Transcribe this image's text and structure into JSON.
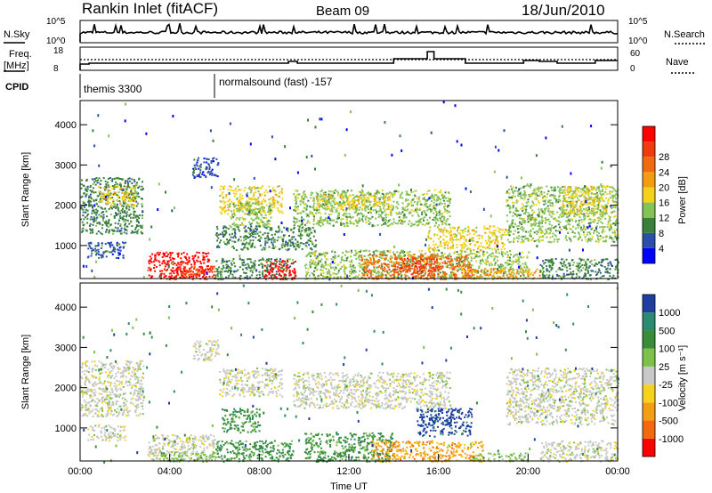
{
  "header": {
    "station": "Rankin Inlet (fitACF)",
    "beam": "Beam 09",
    "date": "18/Jun/2010"
  },
  "noise_panel": {
    "left_label": "N.Sky",
    "right_label": "N.Search",
    "ticks_left": [
      "10^5",
      "10^0"
    ],
    "ticks_right": [
      "10^5",
      "10^0"
    ]
  },
  "freq_panel": {
    "left_label": "Freq.",
    "left_unit": "[MHz]",
    "right_label": "Nave",
    "ticks_left": [
      "18",
      "8"
    ],
    "ticks_right": [
      "60",
      "0"
    ]
  },
  "cpid": {
    "label": "CPID",
    "segments": [
      {
        "name": "themis 3300",
        "start_hour": 0
      },
      {
        "name": "normalsound (fast) -157",
        "start_hour": 6
      }
    ]
  },
  "chart_data": [
    {
      "type": "heatmap",
      "name": "power",
      "ylabel": "Slant Range [km]",
      "xlabel": "",
      "x_ticks": [
        "00:00",
        "04:00",
        "08:00",
        "12:00",
        "16:00",
        "20:00",
        "00:00"
      ],
      "y_ticks": [
        1000,
        2000,
        3000,
        4000
      ],
      "xlim": [
        0,
        24
      ],
      "ylim": [
        180,
        4600
      ],
      "colorbar": {
        "label": "Power [dB]",
        "ticks": [
          "4",
          "8",
          "12",
          "16",
          "20",
          "24",
          "28"
        ],
        "colors": [
          "#0000ff",
          "#2b4fa8",
          "#3a7f3a",
          "#86c25a",
          "#f2d21b",
          "#f39c12",
          "#f26a10",
          "#f23a10",
          "#ff0000"
        ]
      },
      "regions": [
        {
          "t0": 0.0,
          "t1": 2.8,
          "r0": 1300,
          "r1": 2700,
          "level": 2
        },
        {
          "t0": 0.8,
          "t1": 2.5,
          "r0": 2000,
          "r1": 2500,
          "level": 4
        },
        {
          "t0": 0.3,
          "t1": 2.0,
          "r0": 700,
          "r1": 1100,
          "level": 1
        },
        {
          "t0": 3.0,
          "t1": 5.8,
          "r0": 180,
          "r1": 850,
          "level": 8
        },
        {
          "t0": 3.8,
          "t1": 6.0,
          "r0": 180,
          "r1": 500,
          "level": 7
        },
        {
          "t0": 5.0,
          "t1": 6.2,
          "r0": 2700,
          "r1": 3200,
          "level": 1
        },
        {
          "t0": 6.2,
          "t1": 9.0,
          "r0": 1800,
          "r1": 2500,
          "level": 4
        },
        {
          "t0": 6.6,
          "t1": 8.5,
          "r0": 1500,
          "r1": 2100,
          "level": 3
        },
        {
          "t0": 6.0,
          "t1": 10.5,
          "r0": 900,
          "r1": 1500,
          "level": 2
        },
        {
          "t0": 6.0,
          "t1": 9.5,
          "r0": 180,
          "r1": 700,
          "level": 2
        },
        {
          "t0": 8.2,
          "t1": 9.6,
          "r0": 180,
          "r1": 650,
          "level": 8
        },
        {
          "t0": 9.5,
          "t1": 16.5,
          "r0": 1500,
          "r1": 2400,
          "level": 3
        },
        {
          "t0": 10.5,
          "t1": 14.0,
          "r0": 1900,
          "r1": 2300,
          "level": 4
        },
        {
          "t0": 10.0,
          "t1": 20.0,
          "r0": 180,
          "r1": 900,
          "level": 3
        },
        {
          "t0": 12.5,
          "t1": 17.5,
          "r0": 180,
          "r1": 800,
          "level": 6
        },
        {
          "t0": 14.0,
          "t1": 16.0,
          "r0": 300,
          "r1": 700,
          "level": 7
        },
        {
          "t0": 15.5,
          "t1": 19.0,
          "r0": 900,
          "r1": 1500,
          "level": 4
        },
        {
          "t0": 17.0,
          "t1": 20.5,
          "r0": 180,
          "r1": 450,
          "level": 5
        },
        {
          "t0": 19.0,
          "t1": 24.0,
          "r0": 1100,
          "r1": 2500,
          "level": 3
        },
        {
          "t0": 21.5,
          "t1": 23.5,
          "r0": 1800,
          "r1": 2500,
          "level": 4
        },
        {
          "t0": 20.5,
          "t1": 24.0,
          "r0": 180,
          "r1": 700,
          "level": 2
        }
      ]
    },
    {
      "type": "heatmap",
      "name": "velocity",
      "ylabel": "Slant Range [km]",
      "xlabel": "Time UT",
      "x_ticks": [
        "00:00",
        "04:00",
        "08:00",
        "12:00",
        "16:00",
        "20:00",
        "00:00"
      ],
      "y_ticks": [
        1000,
        2000,
        3000,
        4000
      ],
      "xlim": [
        0,
        24
      ],
      "ylim": [
        180,
        4600
      ],
      "colorbar": {
        "label": "Velocity [m s⁻¹]",
        "ticks": [
          "1000",
          "500",
          "100",
          "25",
          "-25",
          "-100",
          "-500",
          "-1000"
        ],
        "colors": [
          "#1f3fa0",
          "#2d8a70",
          "#3a8c3a",
          "#7dc04a",
          "#c8c8c8",
          "#f5d21c",
          "#f2a012",
          "#f26a10",
          "#ff0000"
        ]
      },
      "regions": [
        {
          "t0": 0.0,
          "t1": 2.8,
          "r0": 1300,
          "r1": 2700,
          "level": 4
        },
        {
          "t0": 0.3,
          "t1": 2.0,
          "r0": 700,
          "r1": 1100,
          "level": 4
        },
        {
          "t0": 3.0,
          "t1": 6.0,
          "r0": 180,
          "r1": 850,
          "level": 4
        },
        {
          "t0": 3.5,
          "t1": 6.0,
          "r0": 180,
          "r1": 400,
          "level": 3
        },
        {
          "t0": 5.0,
          "t1": 6.2,
          "r0": 2700,
          "r1": 3200,
          "level": 4
        },
        {
          "t0": 6.2,
          "t1": 9.0,
          "r0": 1800,
          "r1": 2500,
          "level": 4
        },
        {
          "t0": 6.3,
          "t1": 8.0,
          "r0": 900,
          "r1": 1500,
          "level": 2
        },
        {
          "t0": 6.0,
          "t1": 9.5,
          "r0": 180,
          "r1": 700,
          "level": 2
        },
        {
          "t0": 9.5,
          "t1": 16.5,
          "r0": 1500,
          "r1": 2400,
          "level": 4
        },
        {
          "t0": 10.0,
          "t1": 14.0,
          "r0": 180,
          "r1": 900,
          "level": 2
        },
        {
          "t0": 13.0,
          "t1": 18.0,
          "r0": 180,
          "r1": 700,
          "level": 6
        },
        {
          "t0": 15.0,
          "t1": 17.5,
          "r0": 800,
          "r1": 1500,
          "level": 0
        },
        {
          "t0": 17.5,
          "t1": 20.0,
          "r0": 180,
          "r1": 400,
          "level": 3
        },
        {
          "t0": 19.0,
          "t1": 24.0,
          "r0": 1100,
          "r1": 2500,
          "level": 4
        },
        {
          "t0": 20.5,
          "t1": 24.0,
          "r0": 180,
          "r1": 700,
          "level": 4
        }
      ]
    }
  ]
}
